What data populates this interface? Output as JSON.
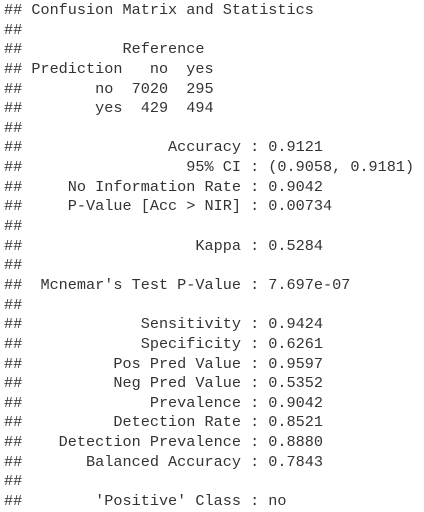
{
  "console": {
    "lines": [
      "## Confusion Matrix and Statistics",
      "##",
      "##           Reference",
      "## Prediction   no  yes",
      "##        no  7020  295",
      "##        yes  429  494",
      "##",
      "##                Accuracy : 0.9121",
      "##                  95% CI : (0.9058, 0.9181)",
      "##     No Information Rate : 0.9042",
      "##     P-Value [Acc > NIR] : 0.00734",
      "##",
      "##                   Kappa : 0.5284",
      "##",
      "##  Mcnemar's Test P-Value : 7.697e-07",
      "##",
      "##             Sensitivity : 0.9424",
      "##             Specificity : 0.6261",
      "##          Pos Pred Value : 0.9597",
      "##          Neg Pred Value : 0.5352",
      "##              Prevalence : 0.9042",
      "##          Detection Rate : 0.8521",
      "##    Detection Prevalence : 0.8880",
      "##       Balanced Accuracy : 0.7843",
      "##",
      "##        'Positive' Class : no"
    ]
  },
  "colors": {
    "text": "#333333",
    "background": "#ffffff"
  }
}
